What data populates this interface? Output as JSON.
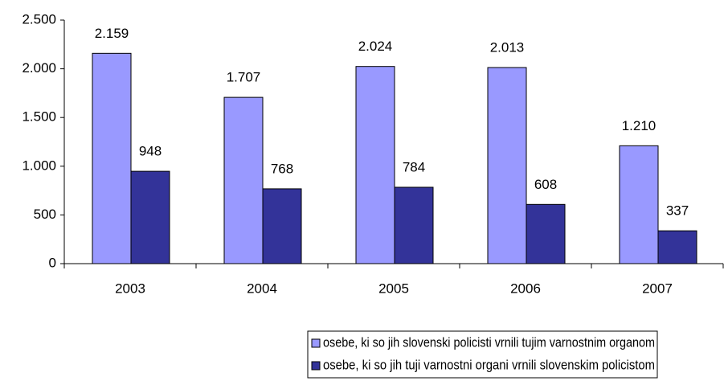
{
  "chart_data": {
    "type": "bar",
    "categories": [
      "2003",
      "2004",
      "2005",
      "2006",
      "2007"
    ],
    "series": [
      {
        "name": "osebe, ki so jih slovenski policisti vrnili tujim varnostnim organom",
        "color": "#9999ff",
        "values": [
          2159,
          1707,
          2024,
          2013,
          1210
        ],
        "value_labels": [
          "2.159",
          "1.707",
          "2.024",
          "2.013",
          "1.210"
        ]
      },
      {
        "name": "osebe, ki so jih tuji varnostni organi vrnili slovenskim policistom",
        "color": "#333399",
        "values": [
          948,
          768,
          784,
          608,
          337
        ],
        "value_labels": [
          "948",
          "768",
          "784",
          "608",
          "337"
        ]
      }
    ],
    "ylim": [
      0,
      2500
    ],
    "yticks": [
      0,
      500,
      {
        "value": 1000,
        "label": "1.000"
      },
      {
        "value": 1500,
        "label": "1.500"
      },
      {
        "value": 2000,
        "label": "2.000"
      },
      {
        "value": 2500,
        "label": "2.500"
      }
    ],
    "grid": false,
    "legend": "bottom"
  }
}
